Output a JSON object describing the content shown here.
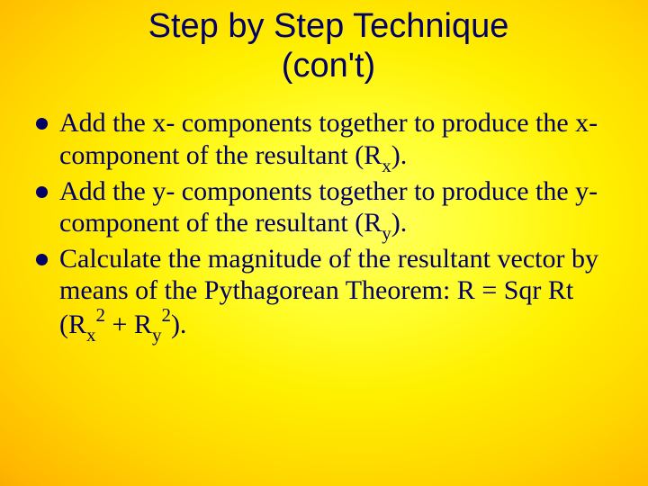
{
  "colors": {
    "text": "#000066",
    "bullet": "#000066",
    "bg_center": "#ffff66",
    "bg_edge": "#804010"
  },
  "typography": {
    "title_font": "Arial",
    "title_size_pt": 38,
    "body_font": "Times New Roman",
    "body_size_pt": 30
  },
  "title_line1": "Step by Step Technique",
  "title_line2": "(con't)",
  "bullets": [
    {
      "pre1": "Add the x- components together to produce the x- component of the resultant (R",
      "sub1": "x",
      "post1": ")."
    },
    {
      "pre1": "Add the y- components together to produce the y- component of the resultant (R",
      "sub1": "y",
      "post1": ")."
    },
    {
      "pre1": "Calculate the magnitude of the resultant vector by means of the Pythagorean Theorem:  R = Sqr Rt (R",
      "sub1": "x",
      "sup1": "2",
      "mid": " + R",
      "sub2": "y",
      "sup2": "2",
      "post1": ")."
    }
  ]
}
